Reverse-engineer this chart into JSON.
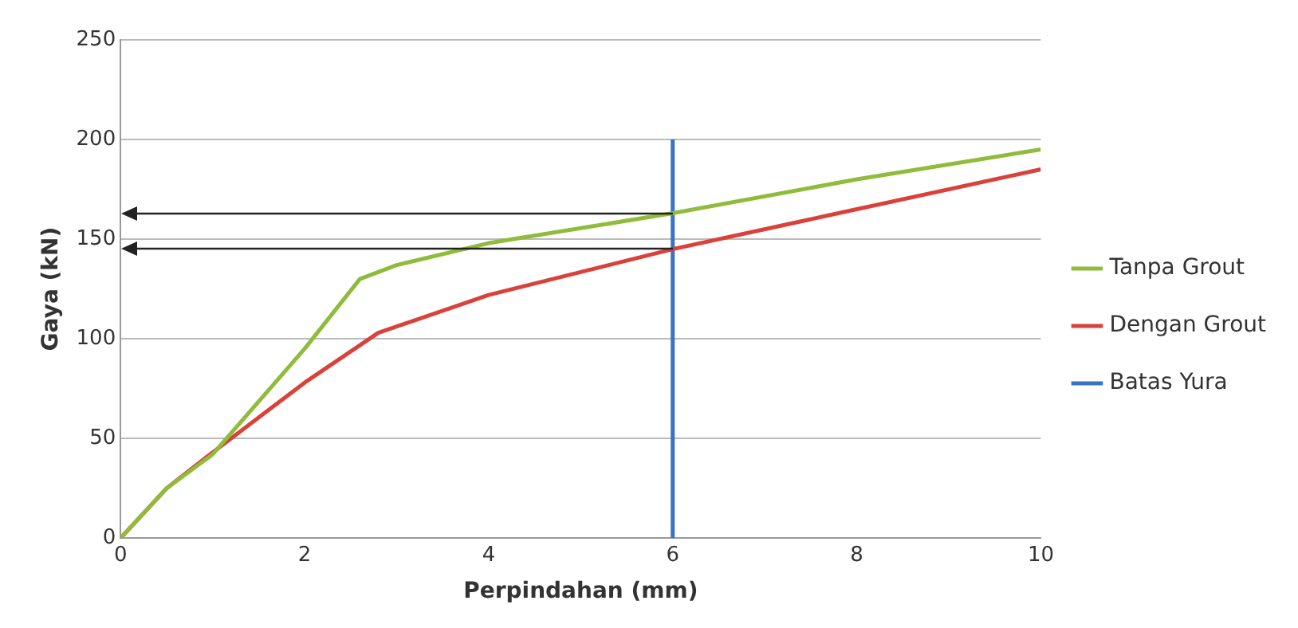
{
  "chart_data": {
    "type": "line",
    "xlabel": "Perpindahan (mm)",
    "ylabel": "Gaya (kN)",
    "xlim": [
      0,
      10
    ],
    "xticks": [
      0,
      2,
      4,
      6,
      8,
      10
    ],
    "ylim": [
      0,
      250
    ],
    "yticks": [
      0,
      50,
      100,
      150,
      200,
      250
    ],
    "grid": "y",
    "legend": "right",
    "marker": "none",
    "line_style": "solid",
    "series": [
      {
        "name": "Tanpa Grout",
        "color": "#8fbc3a",
        "x": [
          0,
          0.5,
          1,
          2,
          2.6,
          3,
          4,
          6,
          8,
          10
        ],
        "values": [
          0,
          25,
          42,
          95,
          130,
          137,
          148,
          163,
          180,
          195
        ]
      },
      {
        "name": "Dengan Grout",
        "color": "#d9413a",
        "x": [
          0,
          0.5,
          1,
          2,
          2.8,
          4,
          6,
          8,
          10
        ],
        "values": [
          0,
          25,
          43,
          78,
          103,
          122,
          145,
          165,
          185
        ]
      },
      {
        "name": "Batas Yura",
        "color": "#3a72c4",
        "x": [
          6,
          6
        ],
        "values": [
          0,
          200
        ]
      }
    ]
  }
}
